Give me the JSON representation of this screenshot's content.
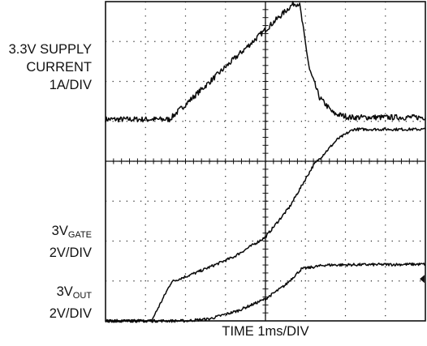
{
  "labels": {
    "supply_line1": "3.3V SUPPLY",
    "supply_line2": "CURRENT",
    "supply_line3": "1A/DIV",
    "gate_prefix": "3V",
    "gate_sub": "GATE",
    "gate_scale": "2V/DIV",
    "out_prefix": "3V",
    "out_sub": "OUT",
    "out_scale": "2V/DIV"
  },
  "chart_data": {
    "type": "line",
    "xlabel": "TIME 1ms/DIV",
    "x_divisions": 8,
    "y_divisions": 8,
    "grid": true,
    "x_range_div": [
      0,
      8
    ],
    "series": [
      {
        "name": "3.3V SUPPLY CURRENT",
        "scale": "1A/DIV",
        "points_div": [
          [
            0,
            5.05
          ],
          [
            1.6,
            5.05
          ],
          [
            4.7,
            7.95
          ],
          [
            4.85,
            7.95
          ],
          [
            5.1,
            6.3
          ],
          [
            5.35,
            5.6
          ],
          [
            5.7,
            5.2
          ],
          [
            6.1,
            5.1
          ],
          [
            8,
            5.1
          ]
        ]
      },
      {
        "name": "3V GATE",
        "scale": "2V/DIV",
        "points_div": [
          [
            0,
            0
          ],
          [
            1.15,
            0
          ],
          [
            1.65,
            0.98
          ],
          [
            2.3,
            1.22
          ],
          [
            3.2,
            1.6
          ],
          [
            4,
            2.1
          ],
          [
            4.6,
            2.85
          ],
          [
            5.2,
            3.9
          ],
          [
            5.8,
            4.55
          ],
          [
            6.2,
            4.8
          ],
          [
            8,
            4.8
          ]
        ]
      },
      {
        "name": "3V OUT",
        "scale": "2V/DIV",
        "points_div": [
          [
            0,
            0
          ],
          [
            2,
            0
          ],
          [
            2.6,
            0.05
          ],
          [
            3.3,
            0.25
          ],
          [
            4,
            0.55
          ],
          [
            4.5,
            0.9
          ],
          [
            4.9,
            1.3
          ],
          [
            5.5,
            1.4
          ],
          [
            8,
            1.42
          ]
        ]
      }
    ]
  }
}
